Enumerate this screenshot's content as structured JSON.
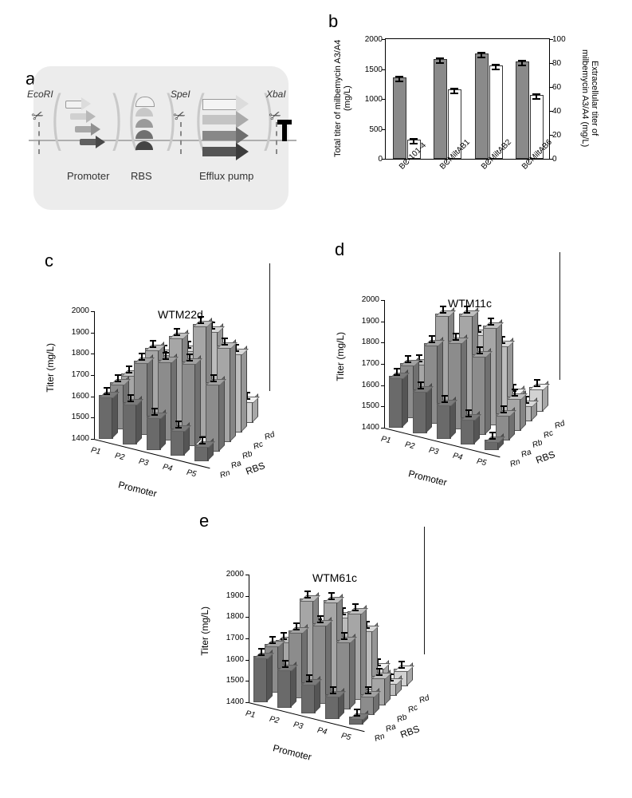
{
  "labels": {
    "a": "a",
    "b": "b",
    "c": "c",
    "d": "d",
    "e": "e"
  },
  "panelA": {
    "sites": [
      "EcoRI",
      "SpeI",
      "XbaI"
    ],
    "groups": [
      "Promoter",
      "RBS",
      "Efflux pump"
    ]
  },
  "panelB": {
    "ylabel_left": "Total titer of\nmilbemycin A3/A4 (mg/L)",
    "ylabel_right": "Extracellular titer of\nmilbemycin A3/A4 (mg/L)",
    "yticks_left": [
      0,
      500,
      1000,
      1500,
      2000
    ],
    "yticks_right": [
      0,
      20,
      40,
      60,
      80,
      100
    ],
    "categories": [
      "BC-101-4",
      "BCMiltAB1",
      "BCMiltAB2",
      "BCMiltAB6"
    ],
    "total": [
      1340,
      1640,
      1740,
      1600
    ],
    "total_err": [
      35,
      30,
      25,
      40
    ],
    "extra": [
      15,
      57,
      77,
      52
    ],
    "extra_err": [
      2,
      5,
      3,
      6
    ],
    "colors": {
      "total": "#8a8a8a",
      "extra": "#ffffff",
      "border": "#333333"
    }
  },
  "panels3d": {
    "zlabel": "Titer (mg/L)",
    "zmin": 1400,
    "zmax": 2000,
    "zstep": 100,
    "xlab": "Promoter",
    "ylab": "RBS",
    "promoters": [
      "P1",
      "P2",
      "P3",
      "P4",
      "P5"
    ],
    "rbs": [
      "Rn",
      "Ra",
      "Rb",
      "Rc",
      "Rd"
    ],
    "row_colors": [
      "#6a6a6a",
      "#8c8c8c",
      "#a6a6a6",
      "#bcbcbc",
      "#d2d2d2"
    ],
    "c": {
      "title": "WTM22d",
      "data": [
        [
          1600,
          1615,
          1610,
          1565,
          1475
        ],
        [
          1590,
          1740,
          1755,
          1690,
          1540
        ],
        [
          1555,
          1770,
          1840,
          1735,
          1545
        ],
        [
          1520,
          1790,
          1920,
          1850,
          1560
        ],
        [
          1470,
          1720,
          1845,
          1770,
          1500
        ]
      ],
      "err": 30
    },
    "d": {
      "title": "WTM11c",
      "data": [
        [
          1635,
          1650,
          1610,
          1520,
          1430
        ],
        [
          1600,
          1770,
          1865,
          1640,
          1475
        ],
        [
          1560,
          1810,
          1890,
          1755,
          1485
        ],
        [
          1520,
          1770,
          1860,
          1730,
          1460
        ],
        [
          1440,
          1520,
          1555,
          1475,
          1510
        ]
      ],
      "err": 30
    },
    "e": {
      "title": "WTM61c",
      "data": [
        [
          1610,
          1620,
          1595,
          1510,
          1430
        ],
        [
          1580,
          1710,
          1815,
          1640,
          1470
        ],
        [
          1540,
          1770,
          1835,
          1720,
          1485
        ],
        [
          1510,
          1720,
          1810,
          1680,
          1460
        ],
        [
          1430,
          1490,
          1530,
          1460,
          1475
        ]
      ],
      "err": 30
    }
  }
}
